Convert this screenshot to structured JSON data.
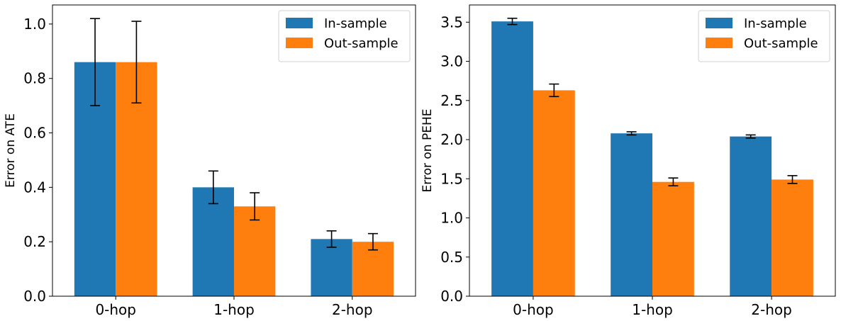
{
  "chart_data": [
    {
      "type": "bar",
      "ylabel": "Error on ATE",
      "xlabel": "",
      "categories": [
        "0-hop",
        "1-hop",
        "2-hop"
      ],
      "ylim": [
        0,
        1.07
      ],
      "yticks": [
        "0.0",
        "0.2",
        "0.4",
        "0.6",
        "0.8",
        "1.0"
      ],
      "legend_position": "top-right",
      "series": [
        {
          "name": "In-sample",
          "color": "#1f77b4",
          "values": [
            0.86,
            0.4,
            0.21
          ],
          "errors": [
            0.16,
            0.06,
            0.03
          ]
        },
        {
          "name": "Out-sample",
          "color": "#ff7f0e",
          "values": [
            0.86,
            0.33,
            0.2
          ],
          "errors": [
            0.15,
            0.05,
            0.03
          ]
        }
      ]
    },
    {
      "type": "bar",
      "ylabel": "Error on PEHE",
      "xlabel": "",
      "categories": [
        "0-hop",
        "1-hop",
        "2-hop"
      ],
      "ylim": [
        0,
        3.72
      ],
      "yticks": [
        "0.0",
        "0.5",
        "1.0",
        "1.5",
        "2.0",
        "2.5",
        "3.0",
        "3.5"
      ],
      "legend_position": "top-right",
      "series": [
        {
          "name": "In-sample",
          "color": "#1f77b4",
          "values": [
            3.51,
            2.08,
            2.04
          ],
          "errors": [
            0.04,
            0.02,
            0.02
          ]
        },
        {
          "name": "Out-sample",
          "color": "#ff7f0e",
          "values": [
            2.63,
            1.46,
            1.49
          ],
          "errors": [
            0.08,
            0.05,
            0.05
          ]
        }
      ]
    }
  ]
}
